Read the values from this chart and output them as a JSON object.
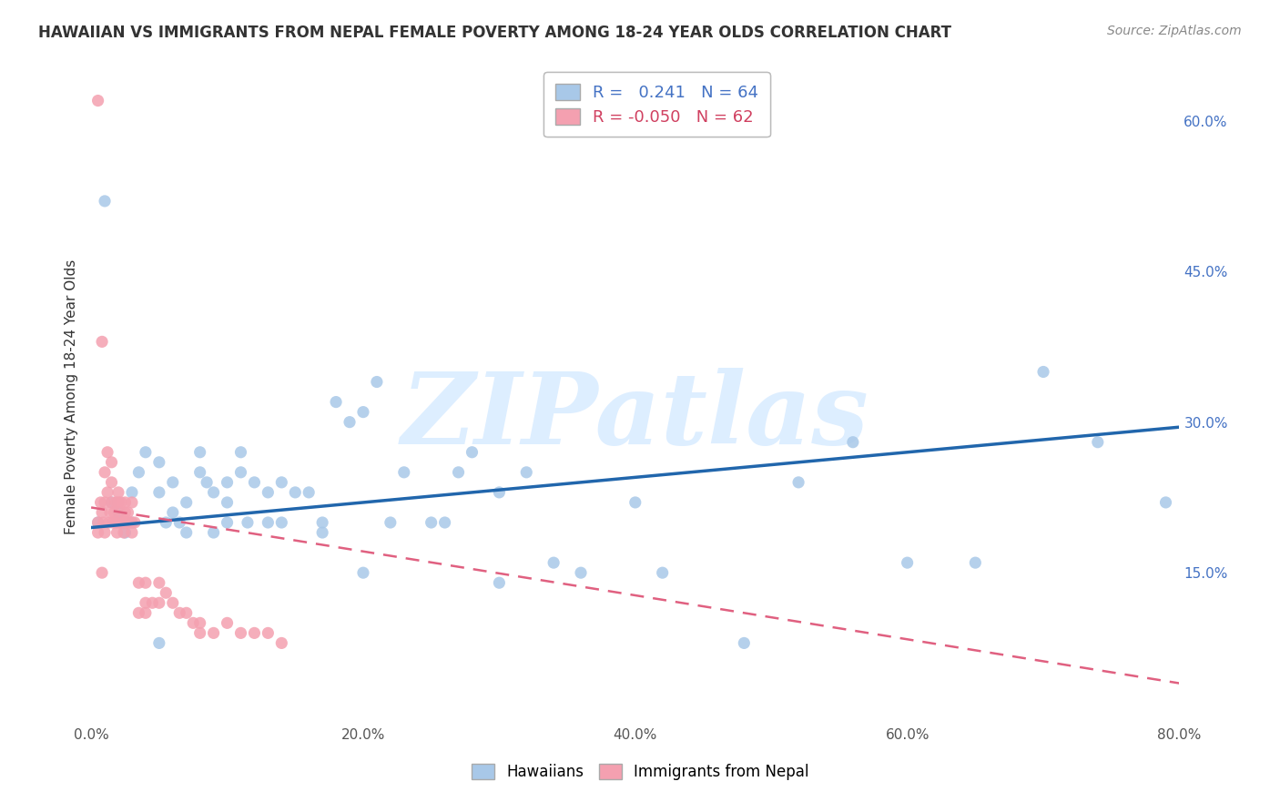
{
  "title": "HAWAIIAN VS IMMIGRANTS FROM NEPAL FEMALE POVERTY AMONG 18-24 YEAR OLDS CORRELATION CHART",
  "source": "Source: ZipAtlas.com",
  "ylabel": "Female Poverty Among 18-24 Year Olds",
  "xlim": [
    0.0,
    0.8
  ],
  "ylim": [
    0.0,
    0.65
  ],
  "xticks": [
    0.0,
    0.1,
    0.2,
    0.3,
    0.4,
    0.5,
    0.6,
    0.7,
    0.8
  ],
  "xticklabels": [
    "0.0%",
    "",
    "20.0%",
    "",
    "40.0%",
    "",
    "60.0%",
    "",
    "80.0%"
  ],
  "yticks_right": [
    0.15,
    0.3,
    0.45,
    0.6
  ],
  "yticks_right_labels": [
    "15.0%",
    "30.0%",
    "45.0%",
    "60.0%"
  ],
  "hawaiian_color": "#a8c8e8",
  "nepal_color": "#f4a0b0",
  "hawaii_R": 0.241,
  "hawaii_N": 64,
  "nepal_R": -0.05,
  "nepal_N": 62,
  "hawaii_trend_color": "#2166ac",
  "nepal_trend_color": "#e06080",
  "watermark": "ZIPatlas",
  "watermark_color": "#ddeeff",
  "background_color": "#ffffff",
  "hawaii_trend_x0": 0.0,
  "hawaii_trend_y0": 0.195,
  "hawaii_trend_x1": 0.8,
  "hawaii_trend_y1": 0.295,
  "nepal_trend_x0": 0.0,
  "nepal_trend_y0": 0.215,
  "nepal_trend_x1": 0.8,
  "nepal_trend_y1": 0.04,
  "hawaiians_x": [
    0.005,
    0.01,
    0.015,
    0.02,
    0.025,
    0.03,
    0.03,
    0.035,
    0.04,
    0.05,
    0.05,
    0.055,
    0.06,
    0.06,
    0.065,
    0.07,
    0.07,
    0.08,
    0.08,
    0.085,
    0.09,
    0.09,
    0.1,
    0.1,
    0.1,
    0.11,
    0.11,
    0.115,
    0.12,
    0.13,
    0.13,
    0.14,
    0.14,
    0.15,
    0.16,
    0.17,
    0.17,
    0.18,
    0.19,
    0.2,
    0.21,
    0.22,
    0.23,
    0.25,
    0.27,
    0.28,
    0.3,
    0.32,
    0.34,
    0.36,
    0.4,
    0.42,
    0.48,
    0.52,
    0.56,
    0.6,
    0.65,
    0.7,
    0.74,
    0.79,
    0.05,
    0.2,
    0.26,
    0.3
  ],
  "hawaiians_y": [
    0.2,
    0.52,
    0.22,
    0.21,
    0.19,
    0.2,
    0.23,
    0.25,
    0.27,
    0.26,
    0.23,
    0.2,
    0.21,
    0.24,
    0.2,
    0.19,
    0.22,
    0.25,
    0.27,
    0.24,
    0.19,
    0.23,
    0.22,
    0.2,
    0.24,
    0.25,
    0.27,
    0.2,
    0.24,
    0.23,
    0.2,
    0.24,
    0.2,
    0.23,
    0.23,
    0.19,
    0.2,
    0.32,
    0.3,
    0.31,
    0.34,
    0.2,
    0.25,
    0.2,
    0.25,
    0.27,
    0.23,
    0.25,
    0.16,
    0.15,
    0.22,
    0.15,
    0.08,
    0.24,
    0.28,
    0.16,
    0.16,
    0.35,
    0.28,
    0.22,
    0.08,
    0.15,
    0.2,
    0.14
  ],
  "nepal_x": [
    0.005,
    0.005,
    0.007,
    0.008,
    0.008,
    0.009,
    0.01,
    0.01,
    0.01,
    0.012,
    0.012,
    0.013,
    0.014,
    0.015,
    0.015,
    0.015,
    0.016,
    0.017,
    0.018,
    0.018,
    0.019,
    0.02,
    0.02,
    0.02,
    0.021,
    0.022,
    0.022,
    0.023,
    0.024,
    0.025,
    0.025,
    0.025,
    0.026,
    0.027,
    0.028,
    0.03,
    0.03,
    0.03,
    0.032,
    0.035,
    0.035,
    0.04,
    0.04,
    0.04,
    0.045,
    0.05,
    0.05,
    0.055,
    0.06,
    0.065,
    0.07,
    0.075,
    0.08,
    0.08,
    0.09,
    0.1,
    0.11,
    0.12,
    0.13,
    0.14,
    0.005,
    0.008
  ],
  "nepal_y": [
    0.62,
    0.2,
    0.22,
    0.38,
    0.21,
    0.2,
    0.25,
    0.22,
    0.19,
    0.27,
    0.23,
    0.2,
    0.21,
    0.26,
    0.24,
    0.22,
    0.2,
    0.21,
    0.22,
    0.2,
    0.19,
    0.23,
    0.22,
    0.2,
    0.21,
    0.2,
    0.22,
    0.2,
    0.19,
    0.2,
    0.21,
    0.22,
    0.2,
    0.21,
    0.2,
    0.2,
    0.22,
    0.19,
    0.2,
    0.14,
    0.11,
    0.14,
    0.12,
    0.11,
    0.12,
    0.14,
    0.12,
    0.13,
    0.12,
    0.11,
    0.11,
    0.1,
    0.1,
    0.09,
    0.09,
    0.1,
    0.09,
    0.09,
    0.09,
    0.08,
    0.19,
    0.15
  ]
}
